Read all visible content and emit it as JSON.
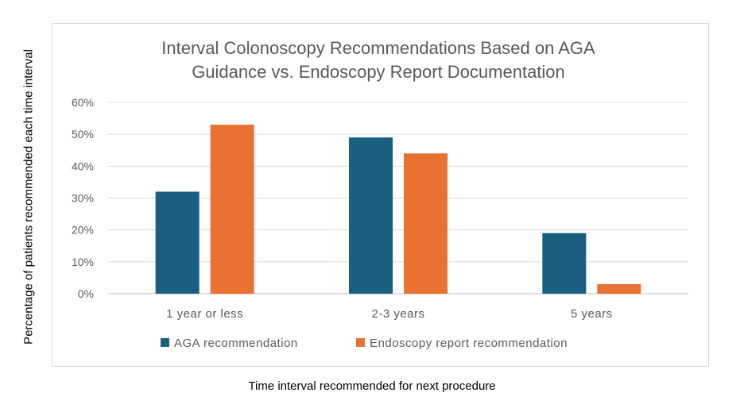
{
  "chart_data": {
    "type": "bar",
    "title_lines": [
      "Interval Colonoscopy Recommendations Based on AGA",
      "Guidance vs. Endoscopy Report Documentation"
    ],
    "xlabel": "Time interval recommended for next procedure",
    "ylabel": "Percentage of patients recommended each time interval",
    "categories": [
      "1 year or less",
      "2-3 years",
      "5 years"
    ],
    "series": [
      {
        "name": "AGA recommendation",
        "values": [
          0.32,
          0.49,
          0.19
        ],
        "color": "#1a5f80"
      },
      {
        "name": "Endoscopy report recommendation",
        "values": [
          0.53,
          0.44,
          0.03
        ],
        "color": "#e97132"
      }
    ],
    "ylim": [
      0,
      0.6
    ],
    "yticks": [
      0,
      0.1,
      0.2,
      0.3,
      0.4,
      0.5,
      0.6
    ],
    "ytick_labels": [
      "0%",
      "10%",
      "20%",
      "30%",
      "40%",
      "50%",
      "60%"
    ],
    "grid": true,
    "legend_position": "bottom"
  }
}
